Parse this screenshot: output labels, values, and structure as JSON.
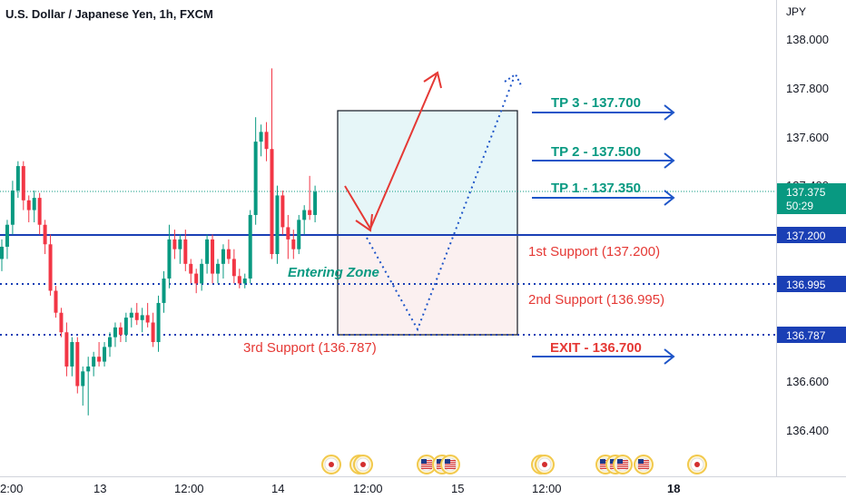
{
  "header": {
    "title": "U.S. Dollar / Japanese Yen, 1h, FXCM"
  },
  "price_axis": {
    "unit": "JPY",
    "ticks": [
      "138.000",
      "137.800",
      "137.600",
      "137.400",
      "136.600",
      "136.400"
    ]
  },
  "time_axis": {
    "labels": [
      {
        "text": "2:00",
        "bold": false
      },
      {
        "text": "13",
        "bold": false
      },
      {
        "text": "12:00",
        "bold": false
      },
      {
        "text": "14",
        "bold": false
      },
      {
        "text": "12:00",
        "bold": false
      },
      {
        "text": "15",
        "bold": false
      },
      {
        "text": "12:00",
        "bold": false
      },
      {
        "text": "18",
        "bold": true
      }
    ]
  },
  "badges": {
    "current_price": "137.375",
    "countdown": "50:29",
    "level_1": "137.200",
    "level_2": "136.995",
    "level_3": "136.787"
  },
  "annotations": {
    "tp3": "TP 3 - 137.700",
    "tp2": "TP 2 - 137.500",
    "tp1": "TP 1 - 137.350",
    "support1": "1st Support (137.200)",
    "support2": "2nd Support (136.995)",
    "support3": "3rd Support (136.787)",
    "exit": "EXIT - 136.700",
    "entering_zone": "Entering Zone"
  },
  "colors": {
    "up": "#089981",
    "down": "#f23645",
    "level_line": "#1a3fb5",
    "arrow": "#1e55c8",
    "red_arrow": "#e53935",
    "zone_top": "#e6f6f8",
    "zone_bottom": "#fbf0f0"
  },
  "chart_data": {
    "type": "candlestick",
    "title": "U.S. Dollar / Japanese Yen, 1h, FXCM",
    "y_unit": "JPY",
    "ylim": [
      136.3,
      138.12
    ],
    "candles": [
      [
        137.1,
        137.18,
        137.05,
        137.15
      ],
      [
        137.15,
        137.26,
        137.1,
        137.24
      ],
      [
        137.24,
        137.42,
        137.2,
        137.38
      ],
      [
        137.38,
        137.5,
        137.35,
        137.48
      ],
      [
        137.48,
        137.5,
        137.3,
        137.34
      ],
      [
        137.34,
        137.36,
        137.25,
        137.3
      ],
      [
        137.3,
        137.38,
        137.25,
        137.35
      ],
      [
        137.35,
        137.37,
        137.2,
        137.24
      ],
      [
        137.24,
        137.26,
        137.12,
        137.16
      ],
      [
        137.16,
        137.2,
        136.95,
        136.97
      ],
      [
        136.97,
        136.99,
        136.86,
        136.88
      ],
      [
        136.88,
        136.9,
        136.78,
        136.8
      ],
      [
        136.8,
        136.84,
        136.62,
        136.66
      ],
      [
        136.66,
        136.78,
        136.62,
        136.76
      ],
      [
        136.76,
        136.78,
        136.55,
        136.58
      ],
      [
        136.58,
        136.66,
        136.5,
        136.64
      ],
      [
        136.64,
        136.7,
        136.46,
        136.66
      ],
      [
        136.66,
        136.72,
        136.62,
        136.7
      ],
      [
        136.7,
        136.76,
        136.66,
        136.68
      ],
      [
        136.68,
        136.76,
        136.66,
        136.74
      ],
      [
        136.74,
        136.8,
        136.7,
        136.78
      ],
      [
        136.78,
        136.84,
        136.74,
        136.82
      ],
      [
        136.82,
        136.84,
        136.76,
        136.79
      ],
      [
        136.79,
        136.88,
        136.76,
        136.86
      ],
      [
        136.86,
        136.9,
        136.82,
        136.88
      ],
      [
        136.88,
        136.92,
        136.83,
        136.85
      ],
      [
        136.85,
        136.9,
        136.8,
        136.87
      ],
      [
        136.87,
        136.92,
        136.82,
        136.84
      ],
      [
        136.84,
        136.88,
        136.74,
        136.76
      ],
      [
        136.76,
        136.95,
        136.72,
        136.92
      ],
      [
        136.92,
        137.05,
        136.88,
        137.02
      ],
      [
        137.02,
        137.24,
        136.98,
        137.18
      ],
      [
        137.18,
        137.22,
        137.1,
        137.14
      ],
      [
        137.14,
        137.2,
        137.08,
        137.18
      ],
      [
        137.18,
        137.22,
        137.05,
        137.08
      ],
      [
        137.08,
        137.1,
        137.0,
        137.04
      ],
      [
        137.04,
        137.06,
        136.96,
        137.0
      ],
      [
        137.0,
        137.1,
        136.97,
        137.08
      ],
      [
        137.08,
        137.2,
        137.04,
        137.18
      ],
      [
        137.18,
        137.2,
        137.0,
        137.04
      ],
      [
        137.04,
        137.1,
        137.0,
        137.08
      ],
      [
        137.08,
        137.16,
        137.02,
        137.14
      ],
      [
        137.14,
        137.18,
        137.08,
        137.1
      ],
      [
        137.1,
        137.14,
        137.0,
        137.03
      ],
      [
        137.03,
        137.06,
        136.98,
        137.0
      ],
      [
        137.0,
        137.04,
        136.98,
        137.02
      ],
      [
        137.02,
        137.3,
        137.0,
        137.28
      ],
      [
        137.28,
        137.68,
        137.24,
        137.58
      ],
      [
        137.58,
        137.65,
        137.52,
        137.62
      ],
      [
        137.62,
        137.66,
        137.5,
        137.55
      ],
      [
        137.55,
        137.88,
        137.1,
        137.12
      ],
      [
        137.12,
        137.4,
        137.08,
        137.36
      ],
      [
        137.36,
        137.38,
        137.2,
        137.23
      ],
      [
        137.23,
        137.28,
        137.1,
        137.18
      ],
      [
        137.18,
        137.22,
        137.1,
        137.14
      ],
      [
        137.14,
        137.28,
        137.12,
        137.26
      ],
      [
        137.26,
        137.32,
        137.2,
        137.3
      ],
      [
        137.3,
        137.44,
        137.26,
        137.28
      ],
      [
        137.28,
        137.4,
        137.25,
        137.375
      ]
    ]
  }
}
